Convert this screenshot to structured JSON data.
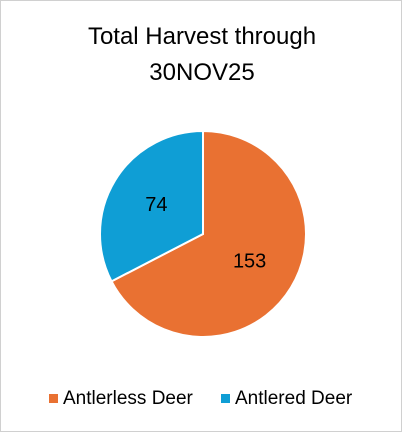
{
  "chart_data": {
    "type": "pie",
    "title": "Total Harvest through 30NOV25",
    "categories": [
      "Antlerless Deer",
      "Antlered Deer"
    ],
    "values": [
      153,
      74
    ],
    "colors": [
      "#E97132",
      "#0F9ED5"
    ],
    "legend": "bottom"
  }
}
